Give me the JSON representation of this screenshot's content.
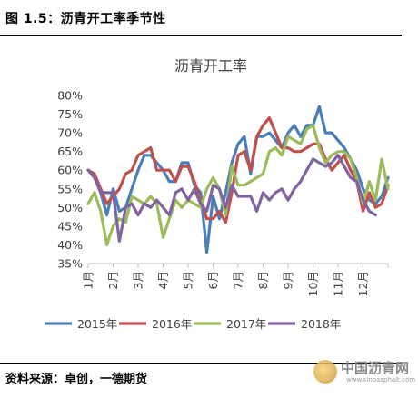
{
  "figure": {
    "caption": "图 1.5：沥青开工率季节性",
    "source": "资料来源：卓创，一德期货"
  },
  "watermark": {
    "main": "中国沥青网",
    "url": "www.sinoasphalt.com"
  },
  "chart_data": {
    "type": "line",
    "title": "沥青开工率",
    "xlabel": "",
    "ylabel": "",
    "ylim": [
      35,
      80
    ],
    "yticks": [
      "35%",
      "40%",
      "45%",
      "50%",
      "55%",
      "60%",
      "65%",
      "70%",
      "75%",
      "80%"
    ],
    "x_range": [
      1,
      13
    ],
    "xticks": [
      "1月",
      "2月",
      "3月",
      "4月",
      "5月",
      "6月",
      "7月",
      "8月",
      "9月",
      "10月",
      "11月",
      "12月"
    ],
    "grid": false,
    "legend": "bottom",
    "series": [
      {
        "name": "2015年",
        "color": "#4a7ebb",
        "x": [
          1,
          1.25,
          1.5,
          1.75,
          2,
          2.25,
          2.5,
          2.75,
          3,
          3.25,
          3.5,
          3.75,
          4,
          4.25,
          4.5,
          4.75,
          5,
          5.25,
          5.5,
          5.75,
          6,
          6.25,
          6.5,
          6.75,
          7,
          7.25,
          7.5,
          7.75,
          8,
          8.25,
          8.5,
          8.75,
          9,
          9.25,
          9.5,
          9.75,
          10,
          10.25,
          10.5,
          10.75,
          11,
          11.25,
          11.5,
          11.75,
          12,
          12.25,
          12.5,
          12.75,
          13
        ],
        "y": [
          60,
          59,
          54,
          48,
          55,
          49,
          50,
          55,
          60,
          64,
          64,
          62,
          60,
          57,
          57,
          62,
          62,
          56,
          54,
          38,
          53,
          47,
          54,
          62,
          67,
          69,
          59,
          69,
          69,
          70,
          68,
          66,
          70,
          72,
          69,
          72,
          72,
          77,
          70,
          70,
          68,
          66,
          63,
          60,
          55,
          52,
          51,
          53,
          58
        ]
      },
      {
        "name": "2016年",
        "color": "#c0504d",
        "x": [
          1,
          1.25,
          1.5,
          1.75,
          2,
          2.25,
          2.5,
          2.75,
          3,
          3.25,
          3.5,
          3.75,
          4,
          4.25,
          4.5,
          4.75,
          5,
          5.25,
          5.5,
          5.75,
          6,
          6.25,
          6.5,
          6.75,
          7,
          7.25,
          7.5,
          7.75,
          8,
          8.25,
          8.5,
          8.75,
          9,
          9.25,
          9.5,
          9.75,
          10,
          10.25,
          10.5,
          10.75,
          11,
          11.25,
          11.5,
          11.75,
          12,
          12.25,
          12.5,
          12.75,
          13
        ],
        "y": [
          60,
          59,
          55,
          51,
          53,
          55,
          59,
          60,
          64,
          65,
          66,
          60,
          60,
          60,
          57,
          61,
          61,
          57,
          52,
          47,
          47,
          49,
          46,
          54,
          64,
          65,
          60,
          69,
          72,
          74,
          70,
          66,
          66,
          65,
          65,
          66,
          67,
          67,
          63,
          60,
          62,
          64,
          60,
          57,
          49,
          54,
          50,
          51,
          56
        ]
      },
      {
        "name": "2017年",
        "color": "#9bbb59",
        "x": [
          1,
          1.25,
          1.5,
          1.75,
          2,
          2.25,
          2.5,
          2.75,
          3,
          3.25,
          3.5,
          3.75,
          4,
          4.25,
          4.5,
          4.75,
          5,
          5.25,
          5.5,
          5.75,
          6,
          6.25,
          6.5,
          6.75,
          7,
          7.25,
          7.5,
          7.75,
          8,
          8.25,
          8.5,
          8.75,
          9,
          9.25,
          9.5,
          9.75,
          10,
          10.25,
          10.5,
          10.75,
          11,
          11.25,
          11.5,
          11.75,
          12,
          12.25,
          12.5,
          12.75,
          13
        ],
        "y": [
          51,
          54,
          49,
          40,
          45,
          47,
          46,
          53,
          52,
          51,
          53,
          51,
          42,
          47,
          52,
          50,
          52,
          51,
          50,
          55,
          58,
          55,
          48,
          61,
          56,
          56,
          57,
          58,
          59,
          65,
          66,
          64,
          69,
          68,
          67,
          71,
          72,
          66,
          62,
          64,
          65,
          65,
          63,
          58,
          51,
          57,
          52,
          63,
          55
        ]
      },
      {
        "name": "2018年",
        "color": "#8064a2",
        "x": [
          1,
          1.25,
          1.5,
          1.75,
          2,
          2.25,
          2.5,
          2.75,
          3,
          3.25,
          3.5,
          3.75,
          4,
          4.25,
          4.5,
          4.75,
          5,
          5.25,
          5.5,
          5.75,
          6,
          6.25,
          6.5,
          6.75,
          7,
          7.25,
          7.5,
          7.75,
          8,
          8.25,
          8.5,
          8.75,
          9,
          9.25,
          9.5,
          9.75,
          10,
          10.25,
          10.5,
          10.75,
          11,
          11.25,
          11.5,
          11.75,
          12,
          12.25,
          12.5
        ],
        "y": [
          60,
          58,
          54,
          54,
          54,
          41,
          50,
          51,
          48,
          51,
          50,
          52,
          50,
          48,
          54,
          55,
          52,
          55,
          51,
          49,
          56,
          55,
          50,
          56,
          53,
          53,
          53,
          49,
          54,
          52,
          54,
          55,
          52,
          55,
          57,
          60,
          63,
          62,
          61,
          62,
          64,
          61,
          58,
          57,
          52,
          49,
          48
        ]
      }
    ]
  }
}
